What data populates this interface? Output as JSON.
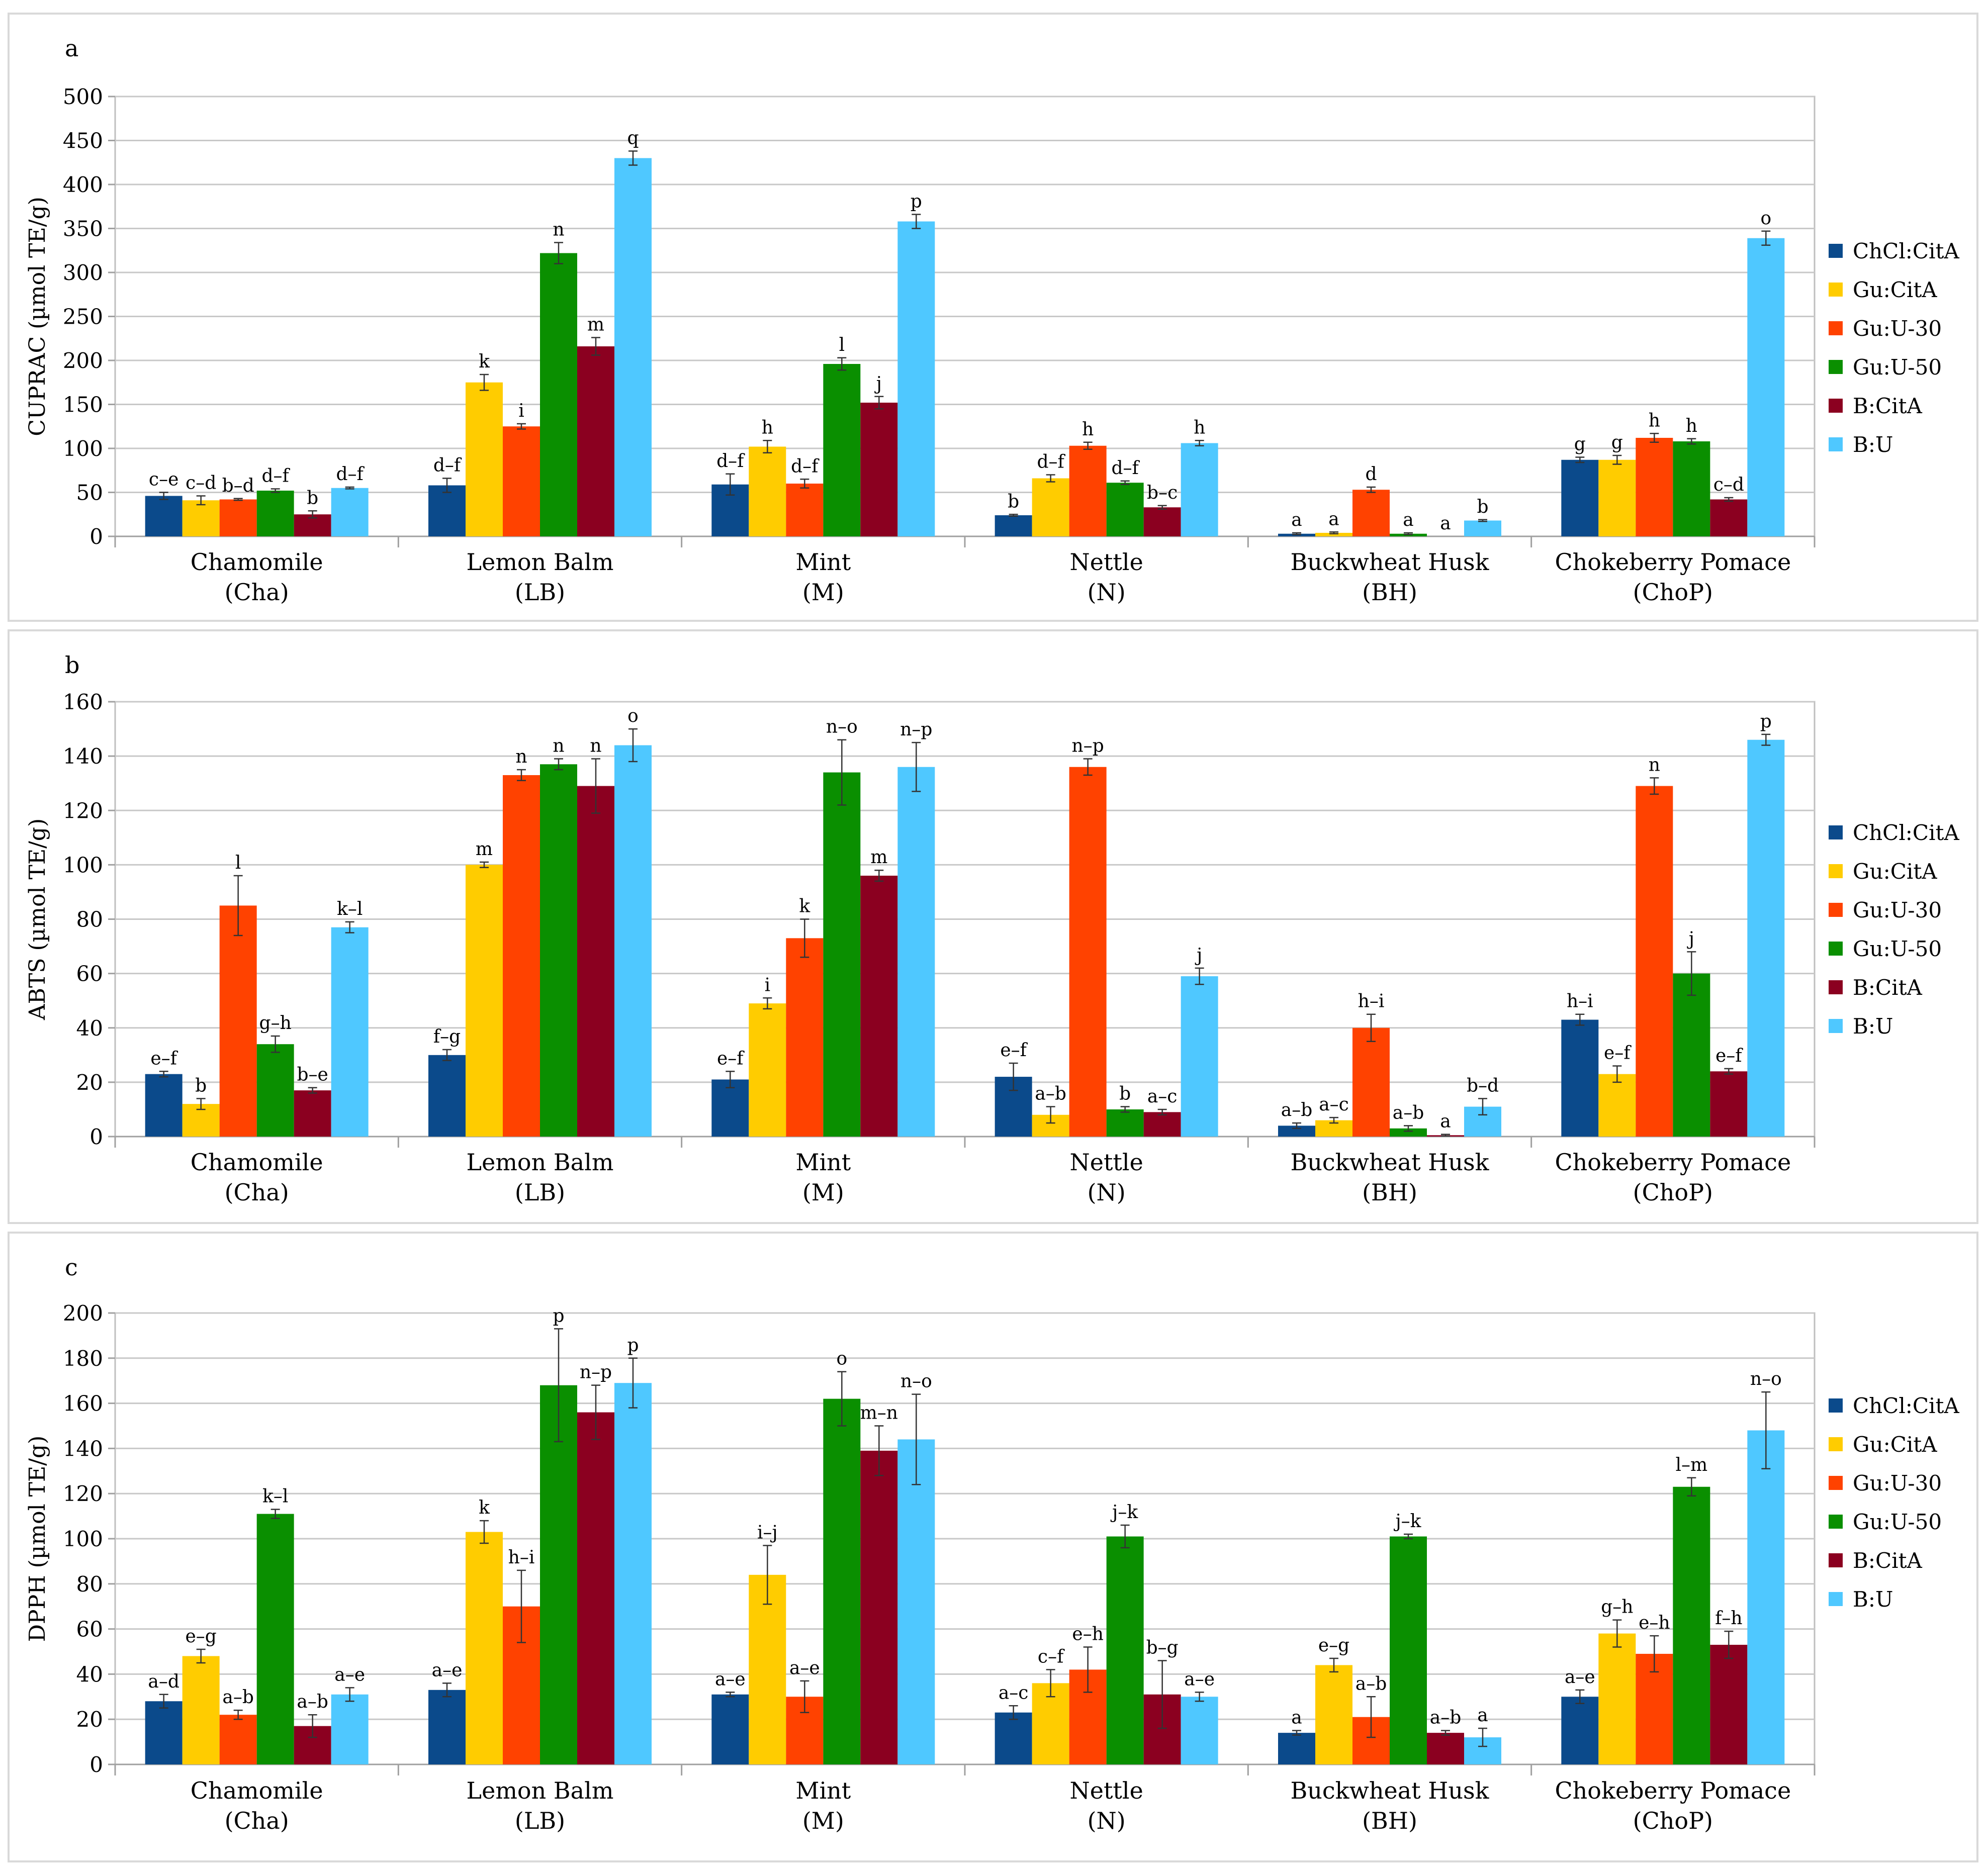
{
  "legend": {
    "series_names": [
      "ChCl:CitA",
      "Gu:CitA",
      "Gu:U-30",
      "Gu:U-50",
      "B:CitA",
      "B:U"
    ],
    "colors": [
      "#0b4a8b",
      "#ffcc00",
      "#ff4200",
      "#0a8f00",
      "#8b0020",
      "#4fc8ff"
    ]
  },
  "chart_data": [
    {
      "type": "bar",
      "panel_label": "a",
      "ylabel": "CUPRAC (µmol TE/g)",
      "ylim": [
        0,
        500
      ],
      "yticks": [
        0,
        50,
        100,
        150,
        200,
        250,
        300,
        350,
        400,
        450,
        500
      ],
      "categories": [
        [
          "Chamomile",
          "(Cha)"
        ],
        [
          "Lemon Balm",
          "(LB)"
        ],
        [
          "Mint",
          "(M)"
        ],
        [
          "Nettle",
          "(N)"
        ],
        [
          "Buckwheat Husk",
          "(BH)"
        ],
        [
          "Chokeberry Pomace",
          "(ChoP)"
        ]
      ],
      "series": [
        {
          "name": "ChCl:CitA",
          "values": [
            46,
            58,
            59,
            24,
            3,
            87
          ],
          "errors": [
            4,
            8,
            12,
            1,
            1,
            3
          ],
          "labels": [
            "c–e",
            "d–f",
            "d–f",
            "b",
            "a",
            "g"
          ]
        },
        {
          "name": "Gu:CitA",
          "values": [
            41,
            175,
            102,
            66,
            4,
            87
          ],
          "errors": [
            5,
            9,
            7,
            4,
            1,
            5
          ],
          "labels": [
            "c–d",
            "k",
            "h",
            "d–f",
            "a",
            "g"
          ]
        },
        {
          "name": "Gu:U-30",
          "values": [
            42,
            125,
            60,
            103,
            53,
            112
          ],
          "errors": [
            1,
            3,
            5,
            4,
            3,
            5
          ],
          "labels": [
            "b–d",
            "i",
            "d–f",
            "h",
            "d",
            "h"
          ]
        },
        {
          "name": "Gu:U-50",
          "values": [
            52,
            322,
            196,
            61,
            3,
            108
          ],
          "errors": [
            2,
            12,
            7,
            2,
            1,
            3
          ],
          "labels": [
            "d–f",
            "n",
            "l",
            "d–f",
            "a",
            "h"
          ]
        },
        {
          "name": "B:CitA",
          "values": [
            25,
            216,
            152,
            33,
            0,
            42
          ],
          "errors": [
            4,
            10,
            7,
            2,
            0,
            2
          ],
          "labels": [
            "b",
            "m",
            "j",
            "b–c",
            "a",
            "c–d"
          ]
        },
        {
          "name": "B:U",
          "values": [
            55,
            430,
            358,
            106,
            18,
            339
          ],
          "errors": [
            1,
            8,
            8,
            3,
            1,
            8
          ],
          "labels": [
            "d–f",
            "q",
            "p",
            "h",
            "b",
            "o"
          ]
        }
      ]
    },
    {
      "type": "bar",
      "panel_label": "b",
      "ylabel": "ABTS (µmol TE/g)",
      "ylim": [
        0,
        160
      ],
      "yticks": [
        0,
        20,
        40,
        60,
        80,
        100,
        120,
        140,
        160
      ],
      "categories": [
        [
          "Chamomile",
          "(Cha)"
        ],
        [
          "Lemon Balm",
          "(LB)"
        ],
        [
          "Mint",
          "(M)"
        ],
        [
          "Nettle",
          "(N)"
        ],
        [
          "Buckwheat Husk",
          "(BH)"
        ],
        [
          "Chokeberry Pomace",
          "(ChoP)"
        ]
      ],
      "series": [
        {
          "name": "ChCl:CitA",
          "values": [
            23,
            30,
            21,
            22,
            4,
            43
          ],
          "errors": [
            1,
            2,
            3,
            5,
            1,
            2
          ],
          "labels": [
            "e–f",
            "f–g",
            "e–f",
            "e–f",
            "a–b",
            "h–i"
          ]
        },
        {
          "name": "Gu:CitA",
          "values": [
            12,
            100,
            49,
            8,
            6,
            23
          ],
          "errors": [
            2,
            1,
            2,
            3,
            1,
            3
          ],
          "labels": [
            "b",
            "m",
            "i",
            "a–b",
            "a–c",
            "e–f"
          ]
        },
        {
          "name": "Gu:U-30",
          "values": [
            85,
            133,
            73,
            136,
            40,
            129
          ],
          "errors": [
            11,
            2,
            7,
            3,
            5,
            3
          ],
          "labels": [
            "l",
            "n",
            "k",
            "n–p",
            "h–i",
            "n"
          ]
        },
        {
          "name": "Gu:U-50",
          "values": [
            34,
            137,
            134,
            10,
            3,
            60
          ],
          "errors": [
            3,
            2,
            12,
            1,
            1,
            8
          ],
          "labels": [
            "g–h",
            "n",
            "n–o",
            "b",
            "a–b",
            "j"
          ]
        },
        {
          "name": "B:CitA",
          "values": [
            17,
            129,
            96,
            9,
            0.5,
            24
          ],
          "errors": [
            1,
            10,
            2,
            1,
            0.3,
            1
          ],
          "labels": [
            "b–e",
            "n",
            "m",
            "a–c",
            "a",
            "e–f"
          ]
        },
        {
          "name": "B:U",
          "values": [
            77,
            144,
            136,
            59,
            11,
            146
          ],
          "errors": [
            2,
            6,
            9,
            3,
            3,
            2
          ],
          "labels": [
            "k–l",
            "o",
            "n–p",
            "j",
            "b–d",
            "p"
          ]
        }
      ]
    },
    {
      "type": "bar",
      "panel_label": "c",
      "ylabel": "DPPH (µmol TE/g)",
      "ylim": [
        0,
        200
      ],
      "yticks": [
        0,
        20,
        40,
        60,
        80,
        100,
        120,
        140,
        160,
        180,
        200
      ],
      "categories": [
        [
          "Chamomile",
          "(Cha)"
        ],
        [
          "Lemon Balm",
          "(LB)"
        ],
        [
          "Mint",
          "(M)"
        ],
        [
          "Nettle",
          "(N)"
        ],
        [
          "Buckwheat Husk",
          "(BH)"
        ],
        [
          "Chokeberry Pomace",
          "(ChoP)"
        ]
      ],
      "series": [
        {
          "name": "ChCl:CitA",
          "values": [
            28,
            33,
            31,
            23,
            14,
            30
          ],
          "errors": [
            3,
            3,
            1,
            3,
            1,
            3
          ],
          "labels": [
            "a–d",
            "a–e",
            "a–e",
            "a–c",
            "a",
            "a–e"
          ]
        },
        {
          "name": "Gu:CitA",
          "values": [
            48,
            103,
            84,
            36,
            44,
            58
          ],
          "errors": [
            3,
            5,
            13,
            6,
            3,
            6
          ],
          "labels": [
            "e–g",
            "k",
            "i–j",
            "c–f",
            "e–g",
            "g–h"
          ]
        },
        {
          "name": "Gu:U-30",
          "values": [
            22,
            70,
            30,
            42,
            21,
            49
          ],
          "errors": [
            2,
            16,
            7,
            10,
            9,
            8
          ],
          "labels": [
            "a–b",
            "h–i",
            "a–e",
            "e–h",
            "a–b",
            "e–h"
          ]
        },
        {
          "name": "Gu:U-50",
          "values": [
            111,
            168,
            162,
            101,
            101,
            123
          ],
          "errors": [
            2,
            25,
            12,
            5,
            1,
            4
          ],
          "labels": [
            "k–l",
            "p",
            "o",
            "j–k",
            "j–k",
            "l–m"
          ]
        },
        {
          "name": "B:CitA",
          "values": [
            17,
            156,
            139,
            31,
            14,
            53
          ],
          "errors": [
            5,
            12,
            11,
            15,
            1,
            6
          ],
          "labels": [
            "a–b",
            "n–p",
            "m–n",
            "b–g",
            "a–b",
            "f–h"
          ]
        },
        {
          "name": "B:U",
          "values": [
            31,
            169,
            144,
            30,
            12,
            148
          ],
          "errors": [
            3,
            11,
            20,
            2,
            4,
            17
          ],
          "labels": [
            "a–e",
            "p",
            "n–o",
            "a–e",
            "a",
            "n–o"
          ]
        }
      ]
    }
  ]
}
